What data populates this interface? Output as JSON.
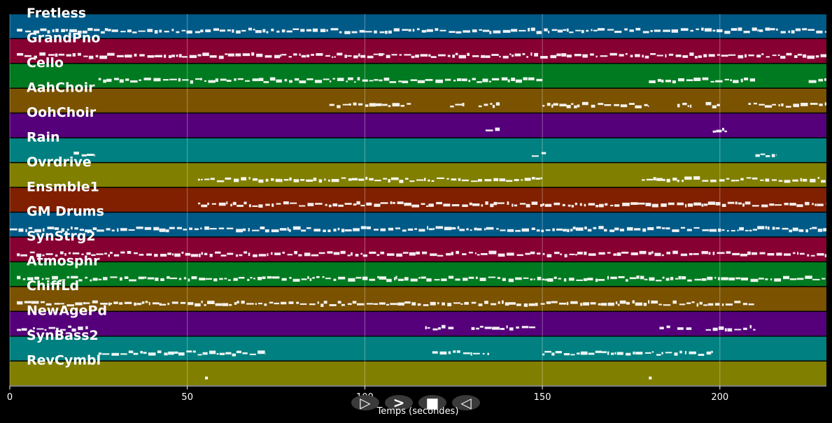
{
  "xaxis": {
    "label": "Temps (secondes)",
    "min": 0,
    "max": 230,
    "ticks": [
      0,
      50,
      100,
      150,
      200
    ]
  },
  "tracks": [
    {
      "name": "Fretless",
      "color": "#005a87",
      "segments": [
        [
          2,
          230
        ]
      ]
    },
    {
      "name": "GrandPno",
      "color": "#870032",
      "segments": [
        [
          2,
          230
        ]
      ]
    },
    {
      "name": "Cello",
      "color": "#007a20",
      "segments": [
        [
          25,
          150
        ],
        [
          180,
          210
        ],
        [
          225,
          230
        ]
      ]
    },
    {
      "name": "AahChoir",
      "color": "#7a5200",
      "segments": [
        [
          90,
          113
        ],
        [
          124,
          128
        ],
        [
          132,
          138
        ],
        [
          150,
          180
        ],
        [
          188,
          192
        ],
        [
          196,
          200
        ],
        [
          208,
          230
        ]
      ]
    },
    {
      "name": "OohChoir",
      "color": "#55007a",
      "segments": [
        [
          134,
          138
        ],
        [
          198,
          202
        ]
      ]
    },
    {
      "name": "Rain",
      "color": "#008080",
      "segments": [
        [
          18,
          24
        ],
        [
          147,
          151
        ],
        [
          210,
          216
        ]
      ]
    },
    {
      "name": "Ovrdrive",
      "color": "#807f00",
      "segments": [
        [
          53,
          150
        ],
        [
          178,
          230
        ]
      ]
    },
    {
      "name": "Ensmble1",
      "color": "#802000",
      "segments": [
        [
          53,
          150
        ],
        [
          150,
          230
        ]
      ]
    },
    {
      "name": "GM Drums",
      "color": "#005a87",
      "segments": [
        [
          0,
          230
        ]
      ]
    },
    {
      "name": "SynStrg2",
      "color": "#870032",
      "segments": [
        [
          2,
          230
        ]
      ]
    },
    {
      "name": "Atmosphr",
      "color": "#007a20",
      "segments": [
        [
          2,
          230
        ]
      ]
    },
    {
      "name": "ChiffLd",
      "color": "#7a5200",
      "segments": [
        [
          2,
          210
        ]
      ]
    },
    {
      "name": "NewAgePd",
      "color": "#55007a",
      "segments": [
        [
          2,
          22
        ],
        [
          117,
          125
        ],
        [
          130,
          148
        ],
        [
          183,
          186
        ],
        [
          188,
          192
        ],
        [
          196,
          198
        ],
        [
          198,
          210
        ]
      ]
    },
    {
      "name": "SynBass2",
      "color": "#008080",
      "segments": [
        [
          25,
          72
        ],
        [
          119,
          135
        ],
        [
          150,
          198
        ]
      ]
    },
    {
      "name": "RevCymbl",
      "color": "#807f00",
      "segments": [
        [
          55,
          56
        ],
        [
          180,
          181
        ]
      ]
    }
  ],
  "controls": [
    {
      "name": "play-forward-button",
      "glyph": "▷"
    },
    {
      "name": "fast-forward-button",
      "glyph": ">"
    },
    {
      "name": "stop-button",
      "glyph": "■"
    },
    {
      "name": "rewind-button",
      "glyph": "◁"
    }
  ]
}
